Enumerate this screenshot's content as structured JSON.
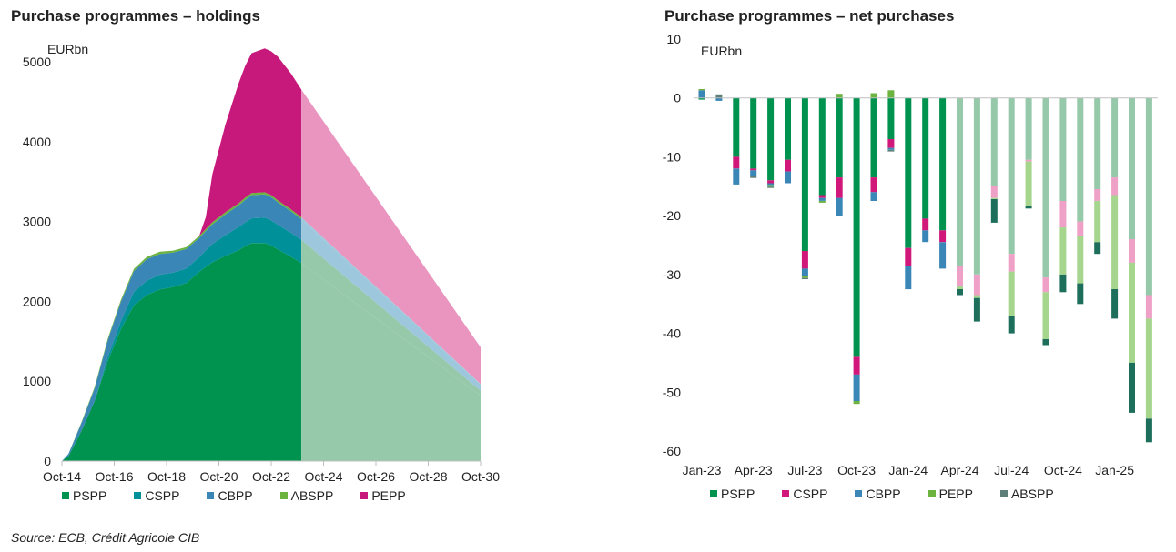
{
  "source": "Source: ECB, Crédit Agricole CIB",
  "chart_data": [
    {
      "type": "area",
      "title": "Purchase programmes – holdings",
      "ylabel": "EURbn",
      "ylim": [
        0,
        5000
      ],
      "yticks": [
        "0",
        "1000",
        "2000",
        "3000",
        "4000",
        "5000"
      ],
      "x_ticks": [
        "Oct-14",
        "Oct-16",
        "Oct-18",
        "Oct-20",
        "Oct-22",
        "Oct-24",
        "Oct-26",
        "Oct-28",
        "Oct-30"
      ],
      "x_start": 2014.75,
      "x_end": 2030.75,
      "projection_start": 2023.9,
      "x": [
        2014.75,
        2015.0,
        2015.5,
        2016.0,
        2016.5,
        2017.0,
        2017.5,
        2018.0,
        2018.5,
        2019.0,
        2019.5,
        2020.0,
        2020.25,
        2020.5,
        2021.0,
        2021.5,
        2021.75,
        2022.0,
        2022.5,
        2022.75,
        2023.0,
        2023.5,
        2023.9,
        2030.75
      ],
      "series": [
        {
          "name": "PSPP",
          "color": "#00934F",
          "proj_color": "#95C9A9",
          "values": [
            0,
            60,
            380,
            750,
            1250,
            1650,
            1950,
            2080,
            2150,
            2180,
            2230,
            2370,
            2430,
            2490,
            2570,
            2640,
            2690,
            2730,
            2730,
            2700,
            2650,
            2560,
            2480,
            820
          ]
        },
        {
          "name": "CSPP",
          "color": "#00909A",
          "proj_color": "#95C9A9",
          "values": [
            0,
            0,
            0,
            0,
            50,
            100,
            170,
            180,
            185,
            180,
            180,
            185,
            210,
            230,
            260,
            290,
            300,
            310,
            320,
            315,
            310,
            300,
            290,
            60
          ]
        },
        {
          "name": "CBPP",
          "color": "#3A86B6",
          "proj_color": "#9DC7DC",
          "values": [
            0,
            30,
            100,
            160,
            210,
            240,
            260,
            270,
            260,
            250,
            245,
            240,
            240,
            245,
            260,
            270,
            280,
            290,
            290,
            290,
            280,
            270,
            260,
            80
          ]
        },
        {
          "name": "ABSPP",
          "color": "#6DB33F",
          "proj_color": "#9DC7DC",
          "values": [
            0,
            0,
            10,
            15,
            20,
            25,
            28,
            28,
            27,
            26,
            25,
            25,
            25,
            26,
            27,
            28,
            28,
            28,
            27,
            26,
            25,
            24,
            23,
            5
          ]
        },
        {
          "name": "PEPP",
          "color": "#C6197B",
          "proj_color": "#E995BF",
          "values": [
            0,
            0,
            0,
            0,
            0,
            0,
            0,
            0,
            0,
            0,
            0,
            0,
            150,
            600,
            1100,
            1500,
            1650,
            1750,
            1800,
            1800,
            1800,
            1700,
            1600,
            460
          ]
        }
      ],
      "legend": [
        "PSPP",
        "CSPP",
        "CBPP",
        "ABSPP",
        "PEPP"
      ]
    },
    {
      "type": "bar",
      "stacked": true,
      "title": "Purchase programmes – net purchases",
      "ylabel": "EURbn",
      "ylim": [
        -60,
        10
      ],
      "yticks": [
        "10",
        "0",
        "-10",
        "-20",
        "-30",
        "-40",
        "-50",
        "-60"
      ],
      "categories": [
        "Jan-23",
        "Feb-23",
        "Mar-23",
        "Apr-23",
        "May-23",
        "Jun-23",
        "Jul-23",
        "Aug-23",
        "Sep-23",
        "Oct-23",
        "Nov-23",
        "Dec-23",
        "Jan-24",
        "Feb-24",
        "Mar-24",
        "Apr-24",
        "May-24",
        "Jun-24",
        "Jul-24",
        "Aug-24",
        "Sep-24",
        "Oct-24",
        "Nov-24",
        "Dec-24",
        "Jan-25",
        "Feb-25",
        "Mar-25"
      ],
      "x_labels": [
        "Jan-23",
        "Apr-23",
        "Jul-23",
        "Oct-23",
        "Jan-24",
        "Apr-24",
        "Jul-24",
        "Oct-24",
        "Jan-25"
      ],
      "projection_from_index": 15,
      "series": [
        {
          "name": "PSPP",
          "color": "#00934F",
          "proj_color": "#95C9A9",
          "values": [
            -0.3,
            0,
            -10,
            -12,
            -14,
            -10.5,
            -26,
            -16.5,
            -13.5,
            -44,
            -13.5,
            -7,
            -25.5,
            -20.5,
            -22.5,
            -28.5,
            -30,
            -15,
            -26.5,
            -10.5,
            -30.5,
            -17.5,
            -21,
            -15.5,
            -13.5,
            -24,
            -33.5
          ]
        },
        {
          "name": "CSPP",
          "color": "#D1187A",
          "proj_color": "#EFA0C6",
          "values": [
            0,
            0,
            -2,
            -0.3,
            -0.5,
            -2,
            -3,
            -0.5,
            -3.5,
            -3,
            -2.5,
            -1.5,
            -3,
            -2,
            -2,
            -3.5,
            -3.5,
            -2,
            -3,
            -0.3,
            -2.5,
            -4.5,
            -2.5,
            -2,
            -3,
            -4,
            -4
          ]
        },
        {
          "name": "CBPP",
          "color": "#3A86B6",
          "proj_color": "#3A86B6",
          "values": [
            1.3,
            -0.5,
            -2.7,
            -1,
            -0.3,
            -2,
            -1.3,
            -0.5,
            -3,
            -4.5,
            -1.5,
            -0.3,
            -4,
            -2,
            -4.5,
            0,
            0,
            0,
            0,
            0,
            0,
            0,
            0,
            0,
            0,
            0,
            0
          ]
        },
        {
          "name": "PEPP",
          "color": "#6DB33F",
          "proj_color": "#A6D58E",
          "values": [
            0.2,
            0,
            0,
            0,
            -0.3,
            0,
            -0.3,
            -0.3,
            0.7,
            -0.5,
            0.8,
            1.3,
            0,
            0,
            0,
            -0.5,
            -0.5,
            -0.2,
            -7.5,
            -7.5,
            -8,
            -8,
            -8,
            -7,
            -16,
            -17,
            -17
          ]
        },
        {
          "name": "ABSPP",
          "color": "#5E7E7A",
          "proj_color": "#1E6E5C",
          "values": [
            0,
            0.6,
            0,
            -0.3,
            -0.2,
            0,
            -0.2,
            0,
            0,
            0,
            0,
            -0.3,
            0,
            0,
            0,
            -1,
            -4,
            -4,
            -3,
            -0.5,
            -1,
            -3,
            -3.5,
            -2,
            -5,
            -8.5,
            -4
          ]
        }
      ],
      "legend": [
        "PSPP",
        "CSPP",
        "CBPP",
        "PEPP",
        "ABSPP"
      ]
    }
  ]
}
